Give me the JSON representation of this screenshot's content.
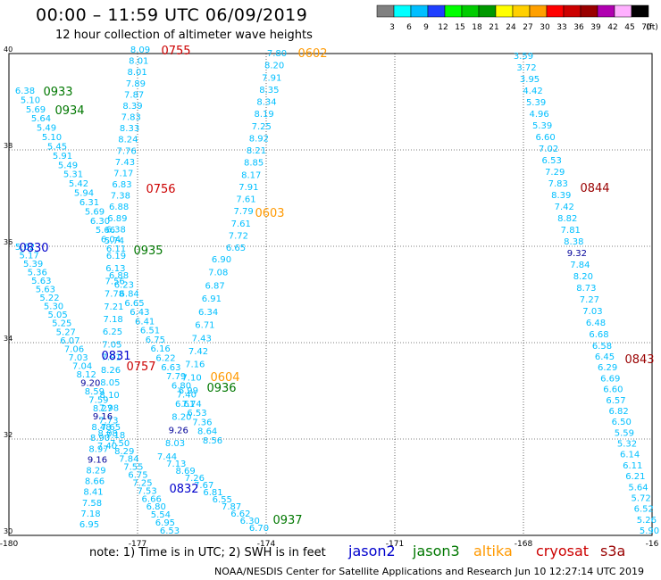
{
  "header": {
    "title": "00:00 – 11:59 UTC 06/09/2019",
    "subtitle": "12 hour collection of altimeter wave heights"
  },
  "legend": {
    "unit": "(ft)",
    "bins": [
      {
        "color": "#808080",
        "label": "3"
      },
      {
        "color": "#00ffff",
        "label": "6"
      },
      {
        "color": "#00bfff",
        "label": "9"
      },
      {
        "color": "#1f3fff",
        "label": "12"
      },
      {
        "color": "#00ff00",
        "label": "15"
      },
      {
        "color": "#00cc00",
        "label": "18"
      },
      {
        "color": "#009900",
        "label": "21"
      },
      {
        "color": "#ffff00",
        "label": "24"
      },
      {
        "color": "#ffd000",
        "label": "27"
      },
      {
        "color": "#ffa000",
        "label": "30"
      },
      {
        "color": "#ff0000",
        "label": "33"
      },
      {
        "color": "#cc0000",
        "label": "36"
      },
      {
        "color": "#990000",
        "label": "39"
      },
      {
        "color": "#b000b0",
        "label": "42"
      },
      {
        "color": "#ffb0ff",
        "label": "45"
      },
      {
        "color": "#000000",
        "label": "70"
      }
    ]
  },
  "axes": {
    "x_ticks": [
      "-180",
      "-177",
      "-174",
      "-171",
      "-168",
      "-16"
    ],
    "y_ticks": [
      "40",
      "38",
      "36",
      "34",
      "32",
      "30"
    ]
  },
  "colors": {
    "jason2": "#0000cc",
    "jason3": "#007700",
    "altika": "#ff9900",
    "cryosat": "#cc0000",
    "s3a": "#990000",
    "value": "#00bfff",
    "value_dark": "#000099"
  },
  "time_labels": [
    {
      "id": "0755",
      "sat": "cryosat"
    },
    {
      "id": "0602",
      "sat": "altika"
    },
    {
      "id": "0933",
      "sat": "jason3"
    },
    {
      "id": "0934",
      "sat": "jason3"
    },
    {
      "id": "0756",
      "sat": "cryosat"
    },
    {
      "id": "0603",
      "sat": "altika"
    },
    {
      "id": "0844",
      "sat": "s3a"
    },
    {
      "id": "0830",
      "sat": "jason2"
    },
    {
      "id": "0935",
      "sat": "jason3"
    },
    {
      "id": "0831",
      "sat": "jason2"
    },
    {
      "id": "0757",
      "sat": "cryosat"
    },
    {
      "id": "0604",
      "sat": "altika"
    },
    {
      "id": "0936",
      "sat": "jason3"
    },
    {
      "id": "0843",
      "sat": "s3a"
    },
    {
      "id": "0832",
      "sat": "jason2"
    },
    {
      "id": "0937",
      "sat": "jason3"
    }
  ],
  "tracks": {
    "cryosat_a": [
      "8.09",
      "8.01",
      "8.01",
      "7.89",
      "7.87",
      "8.39",
      "7.83",
      "8.33",
      "8.24",
      "7.76",
      "7.43",
      "7.17",
      "6.83",
      "7.38",
      "6.88",
      "6.89",
      "6.38",
      "5.74"
    ],
    "altika_a": [
      "7.80",
      "8.20",
      "7.91",
      "8.35",
      "8.34",
      "8.19",
      "7.25",
      "8.92",
      "8.21",
      "8.85",
      "8.17",
      "7.91",
      "7.61",
      "7.79",
      "7.61",
      "7.72",
      "6.65"
    ],
    "jason3_a": [
      "6.38",
      "5.10",
      "5.69",
      "5.64",
      "5.49",
      "5.10",
      "5.45",
      "5.91",
      "5.49",
      "5.31",
      "5.42",
      "5.94",
      "6.31",
      "5.69",
      "6.30",
      "5.66",
      "6.04",
      "6.11"
    ],
    "jason2_a": [
      "5.62",
      "5.17",
      "5.39",
      "5.36",
      "5.63",
      "5.63",
      "5.22",
      "5.30",
      "5.05",
      "5.25",
      "5.27",
      "6.07",
      "7.06",
      "7.03",
      "7.04",
      "8.12",
      "9.20",
      "8.59",
      "7.59",
      "8.27"
    ],
    "mid_a": [
      "6.19",
      "6.13",
      "7.56",
      "7.78",
      "7.21",
      "7.18",
      "6.25",
      "7.05",
      "7.91",
      "8.26",
      "8.05",
      "8.10",
      "7.98",
      "7.73",
      "8.08",
      "7.40"
    ],
    "mid_b": [
      "6.88",
      "6.23",
      "6.84",
      "6.65",
      "6.43",
      "6.41",
      "6.51",
      "6.75",
      "6.16",
      "6.22",
      "6.63",
      "7.79",
      "6.80",
      "7.40",
      "7.74",
      "6.53",
      "7.36",
      "8.64",
      "8.56"
    ],
    "altika_b": [
      "6.90",
      "7.08",
      "6.87",
      "6.91",
      "6.34",
      "6.71",
      "7.43",
      "7.42",
      "7.16",
      "7.10",
      "6.99",
      "6.61",
      "8.20",
      "9.26",
      "8.03"
    ],
    "s3a_a": [
      "3.59",
      "3.72",
      "3.95",
      "4.42",
      "5.39",
      "4.96",
      "5.39",
      "6.60",
      "7.02",
      "6.53",
      "7.29",
      "7.83",
      "8.39",
      "7.42",
      "8.82",
      "7.81",
      "8.38",
      "9.32",
      "7.84",
      "8.20",
      "8.73",
      "7.27",
      "7.03",
      "6.48",
      "6.68",
      "6.58"
    ],
    "s3a_b": [
      "6.45",
      "6.29",
      "6.69",
      "6.60",
      "6.57",
      "6.82",
      "6.50",
      "5.59",
      "5.32",
      "6.14",
      "6.11",
      "6.21",
      "5.64",
      "5.72",
      "6.52",
      "5.26",
      "5.90"
    ],
    "jason2_b": [
      "9.16",
      "8.48",
      "8.90",
      "8.97",
      "9.16",
      "8.29",
      "8.66",
      "8.41",
      "7.58",
      "7.18",
      "6.95"
    ],
    "mid_c": [
      "7.65",
      "7.18",
      "7.50",
      "8.29",
      "7.84",
      "7.55",
      "6.75",
      "7.25",
      "7.53",
      "6.66",
      "6.80",
      "5.54",
      "6.95",
      "6.53"
    ],
    "altika_c": [
      "7.44",
      "7.13",
      "8.69",
      "7.26",
      "7.67",
      "6.81",
      "6.55",
      "7.87",
      "6.62",
      "6.30",
      "6.70"
    ]
  },
  "footer": {
    "note": "note:  1) Time is in UTC;  2) SWH is in feet",
    "sat_names": [
      "jason2",
      "jason3",
      "altika",
      "cryosat",
      "s3a"
    ],
    "credit": "NOAA/NESDIS Center for Satellite Applications and Research      Jun 10 12:27:14 UTC 2019"
  }
}
